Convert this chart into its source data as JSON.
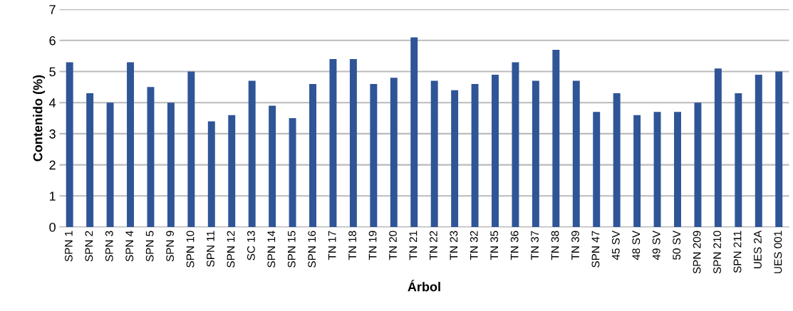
{
  "chart_data": {
    "type": "bar",
    "xlabel": "Árbol",
    "ylabel": "Contenido (%)",
    "categories": [
      "SPN 1",
      "SPN 2",
      "SPN 3",
      "SPN 4",
      "SPN 5",
      "SPN 9",
      "SPN 10",
      "SPN 11",
      "SPN 12",
      "SC 13",
      "SPN 14",
      "SPN 15",
      "SPN 16",
      "TN 17",
      "TN 18",
      "TN 19",
      "TN 20",
      "TN 21",
      "TN 22",
      "TN 23",
      "TN 32",
      "TN 35",
      "TN 36",
      "TN 37",
      "TN 38",
      "TN 39",
      "SPN 47",
      "45 SV",
      "48 SV",
      "49 SV",
      "50 SV",
      "SPN 209",
      "SPN 210",
      "SPN 211",
      "UES 2A",
      "UES 001"
    ],
    "values": [
      5.3,
      4.3,
      4.0,
      5.3,
      4.5,
      4.0,
      5.0,
      3.4,
      3.6,
      4.7,
      3.9,
      3.5,
      4.6,
      5.4,
      5.4,
      4.6,
      4.8,
      6.1,
      4.7,
      4.4,
      4.6,
      4.9,
      5.3,
      4.7,
      5.7,
      4.7,
      3.7,
      4.3,
      3.6,
      3.7,
      3.7,
      4.0,
      5.1,
      4.3,
      4.9,
      5.0
    ],
    "color": "#2f5597",
    "ylim": [
      0,
      7
    ],
    "yticks": [
      0,
      1,
      2,
      3,
      4,
      5,
      6,
      7
    ],
    "grid": "y"
  }
}
